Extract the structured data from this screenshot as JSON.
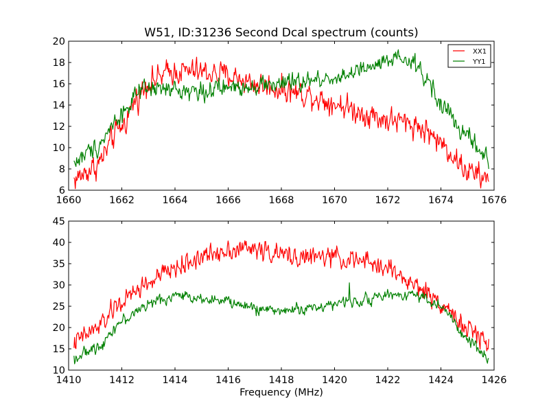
{
  "chart_data": [
    {
      "type": "line",
      "title": "W51, ID:31236 Second Dcal spectrum (counts)",
      "xlabel": "",
      "ylabel": "",
      "xlim": [
        1660,
        1676
      ],
      "ylim": [
        6,
        20
      ],
      "xticks": [
        "1660",
        "1662",
        "1664",
        "1666",
        "1668",
        "1670",
        "1672",
        "1674",
        "1676"
      ],
      "yticks": [
        "6",
        "8",
        "10",
        "12",
        "14",
        "16",
        "18",
        "20"
      ],
      "legend": {
        "placement": "top-right",
        "entries": [
          "XX1",
          "YY1"
        ]
      },
      "grid": false,
      "series": [
        {
          "name": "XX1",
          "color": "#ff0000",
          "noise": 0.55,
          "envelope_x": [
            1660.2,
            1661,
            1662,
            1662.6,
            1663,
            1664,
            1665,
            1666,
            1667,
            1668,
            1669,
            1670,
            1671,
            1672,
            1673,
            1673.5,
            1674,
            1675,
            1675.8
          ],
          "envelope_y": [
            7.0,
            8.2,
            12.0,
            14.8,
            16.2,
            17.2,
            17.1,
            16.8,
            16.0,
            15.5,
            15.0,
            14.2,
            13.3,
            12.6,
            12.2,
            11.5,
            10.4,
            7.8,
            6.9
          ]
        },
        {
          "name": "YY1",
          "color": "#008000",
          "noise": 0.4,
          "envelope_x": [
            1660.2,
            1661,
            1662,
            1662.6,
            1663,
            1664,
            1665,
            1666,
            1667,
            1668,
            1669,
            1670,
            1671,
            1672,
            1672.5,
            1673,
            1673.5,
            1674,
            1675,
            1675.8
          ],
          "envelope_y": [
            8.6,
            10.0,
            13.2,
            15.0,
            15.5,
            15.4,
            15.3,
            15.6,
            15.9,
            16.0,
            16.2,
            16.6,
            17.2,
            18.0,
            18.3,
            17.8,
            16.4,
            14.0,
            11.0,
            8.8
          ]
        }
      ]
    },
    {
      "type": "line",
      "title": "",
      "xlabel": "Frequency (MHz)",
      "ylabel": "",
      "xlim": [
        1410,
        1426
      ],
      "ylim": [
        10,
        45
      ],
      "xticks": [
        "1410",
        "1412",
        "1414",
        "1416",
        "1418",
        "1420",
        "1422",
        "1424",
        "1426"
      ],
      "yticks": [
        "10",
        "15",
        "20",
        "25",
        "30",
        "35",
        "40",
        "45"
      ],
      "grid": false,
      "series": [
        {
          "name": "XX1",
          "color": "#ff0000",
          "noise": 1.1,
          "envelope_x": [
            1410.2,
            1411,
            1412,
            1413,
            1414,
            1415,
            1416,
            1417,
            1418,
            1419,
            1420,
            1421,
            1422,
            1423,
            1424,
            1425,
            1425.8
          ],
          "envelope_y": [
            16.5,
            19.5,
            26.0,
            30.5,
            34.0,
            36.5,
            38.5,
            38.5,
            37.0,
            36.5,
            36.5,
            35.5,
            34.0,
            30.0,
            26.0,
            19.5,
            16.5
          ]
        },
        {
          "name": "YY1",
          "color": "#008000",
          "noise": 0.6,
          "envelope_x": [
            1410.2,
            1411,
            1412,
            1413,
            1414,
            1415,
            1416,
            1417,
            1418,
            1419,
            1420,
            1421,
            1422,
            1423,
            1424,
            1425,
            1425.8
          ],
          "envelope_y": [
            12.8,
            15.0,
            21.5,
            25.5,
            27.5,
            27.0,
            26.0,
            24.5,
            24.0,
            24.5,
            25.5,
            26.5,
            27.5,
            28.0,
            25.0,
            17.0,
            12.8
          ]
        }
      ],
      "annotations": [
        {
          "series": "YY1",
          "x": 1420.55,
          "y": 30.5,
          "note": "narrow spike"
        }
      ]
    }
  ]
}
